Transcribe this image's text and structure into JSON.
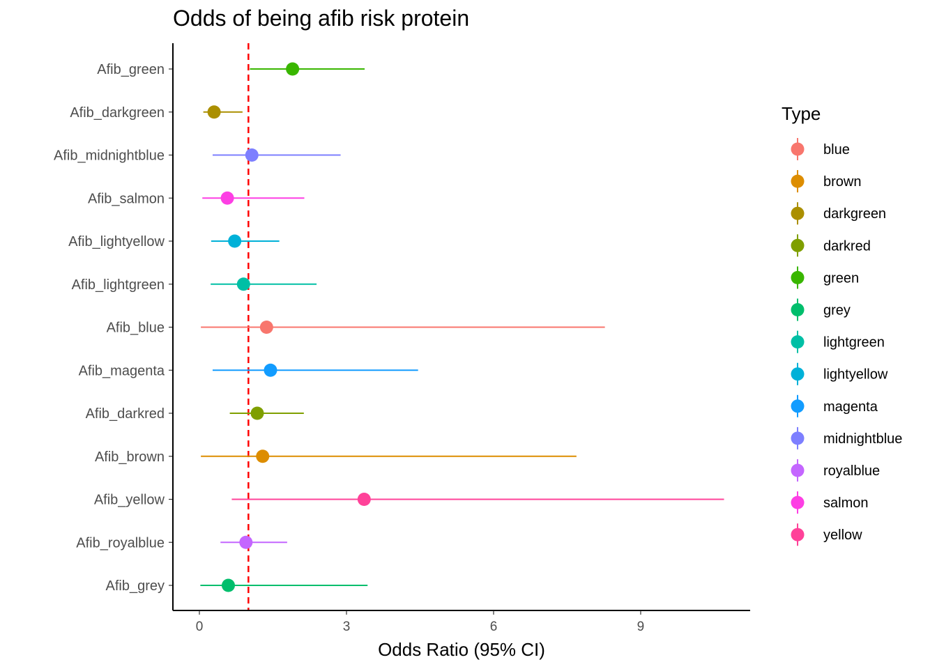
{
  "chart_data": {
    "type": "scatter",
    "title": "Odds of being afib risk protein",
    "xlabel": "Odds Ratio (95% CI)",
    "ylabel": "",
    "xlim": [
      -0.55,
      11.2
    ],
    "xticks": [
      0,
      3,
      6,
      9
    ],
    "reference_line": {
      "x": 1.0,
      "color": "#ff0000",
      "style": "dashed"
    },
    "grid": false,
    "legend": {
      "title": "Type",
      "position": "right"
    },
    "rows": [
      {
        "label": "Afib_green",
        "type": "green",
        "or": 1.9,
        "lower": 1.03,
        "upper": 3.37,
        "color": "#39B600"
      },
      {
        "label": "Afib_darkgreen",
        "type": "darkgreen",
        "or": 0.3,
        "lower": 0.08,
        "upper": 0.88,
        "color": "#AB8F00"
      },
      {
        "label": "Afib_midnightblue",
        "type": "midnightblue",
        "or": 1.07,
        "lower": 0.27,
        "upper": 2.88,
        "color": "#7D7FFF"
      },
      {
        "label": "Afib_salmon",
        "type": "salmon",
        "or": 0.57,
        "lower": 0.06,
        "upper": 2.14,
        "color": "#FD3FE4"
      },
      {
        "label": "Afib_lightyellow",
        "type": "lightyellow",
        "or": 0.72,
        "lower": 0.24,
        "upper": 1.63,
        "color": "#00B1D8"
      },
      {
        "label": "Afib_lightgreen",
        "type": "lightgreen",
        "or": 0.9,
        "lower": 0.23,
        "upper": 2.39,
        "color": "#00BFA5"
      },
      {
        "label": "Afib_blue",
        "type": "blue",
        "or": 1.37,
        "lower": 0.03,
        "upper": 8.27,
        "color": "#F8766D"
      },
      {
        "label": "Afib_magenta",
        "type": "magenta",
        "or": 1.45,
        "lower": 0.27,
        "upper": 4.46,
        "color": "#129CFF"
      },
      {
        "label": "Afib_darkred",
        "type": "darkred",
        "or": 1.18,
        "lower": 0.62,
        "upper": 2.13,
        "color": "#7F9F00"
      },
      {
        "label": "Afib_brown",
        "type": "brown",
        "or": 1.29,
        "lower": 0.03,
        "upper": 7.69,
        "color": "#DD8D00"
      },
      {
        "label": "Afib_yellow",
        "type": "yellow",
        "or": 3.36,
        "lower": 0.66,
        "upper": 10.7,
        "color": "#FF4299"
      },
      {
        "label": "Afib_royalblue",
        "type": "royalblue",
        "or": 0.95,
        "lower": 0.43,
        "upper": 1.79,
        "color": "#C466FF"
      },
      {
        "label": "Afib_grey",
        "type": "grey",
        "or": 0.59,
        "lower": 0.02,
        "upper": 3.43,
        "color": "#00BE6C"
      }
    ],
    "legend_entries": [
      {
        "name": "blue",
        "color": "#F8766D"
      },
      {
        "name": "brown",
        "color": "#DD8D00"
      },
      {
        "name": "darkgreen",
        "color": "#AB8F00"
      },
      {
        "name": "darkred",
        "color": "#7F9F00"
      },
      {
        "name": "green",
        "color": "#39B600"
      },
      {
        "name": "grey",
        "color": "#00BE6C"
      },
      {
        "name": "lightgreen",
        "color": "#00BFA5"
      },
      {
        "name": "lightyellow",
        "color": "#00B1D8"
      },
      {
        "name": "magenta",
        "color": "#129CFF"
      },
      {
        "name": "midnightblue",
        "color": "#7D7FFF"
      },
      {
        "name": "royalblue",
        "color": "#C466FF"
      },
      {
        "name": "salmon",
        "color": "#FD3FE4"
      },
      {
        "name": "yellow",
        "color": "#FF4299"
      }
    ]
  }
}
